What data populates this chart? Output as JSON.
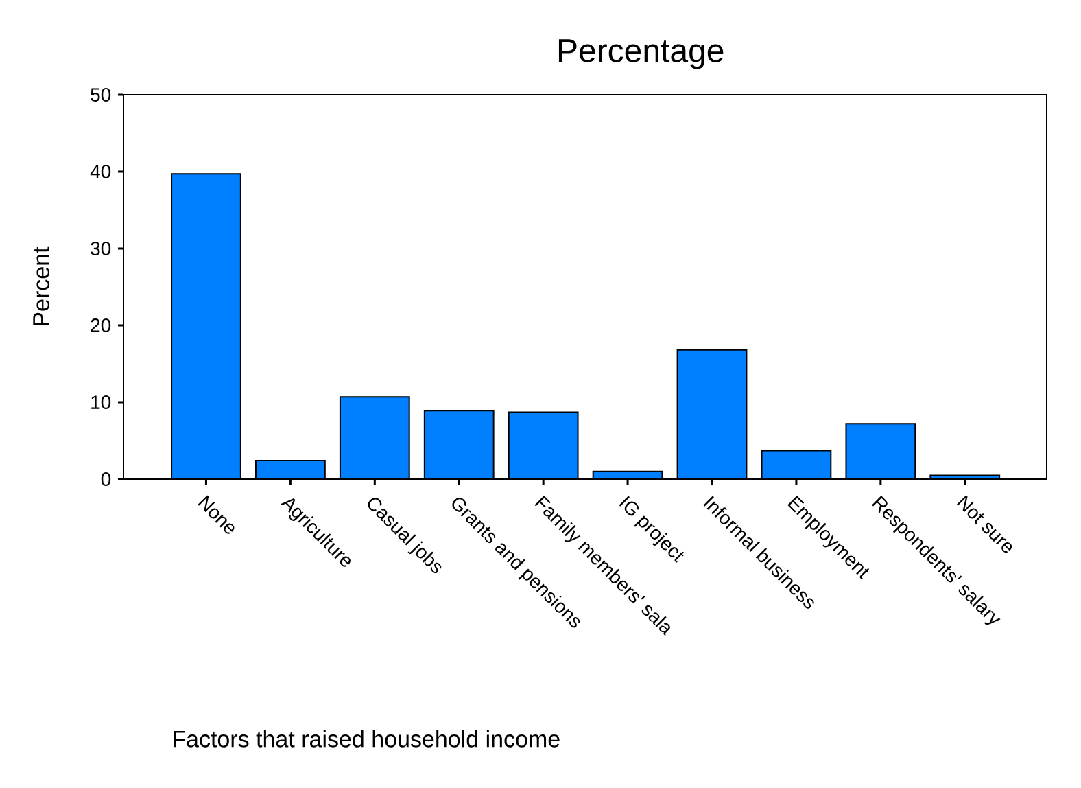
{
  "chart_data": {
    "type": "bar",
    "title": "Percentage",
    "xlabel": "Factors that raised household income",
    "ylabel": "Percent",
    "categories": [
      "None",
      "Agriculture",
      "Casual jobs",
      "Grants and pensions",
      "Family members' sala",
      "IG project",
      "Informal business",
      "Employment",
      "Respondents' salary",
      "Not sure"
    ],
    "values": [
      39.7,
      2.4,
      10.7,
      8.9,
      8.7,
      1.0,
      16.8,
      3.7,
      7.2,
      0.5
    ],
    "color": "#0080ff",
    "ylim": [
      0,
      50
    ],
    "yticks": [
      0,
      10,
      20,
      30,
      40,
      50
    ]
  }
}
